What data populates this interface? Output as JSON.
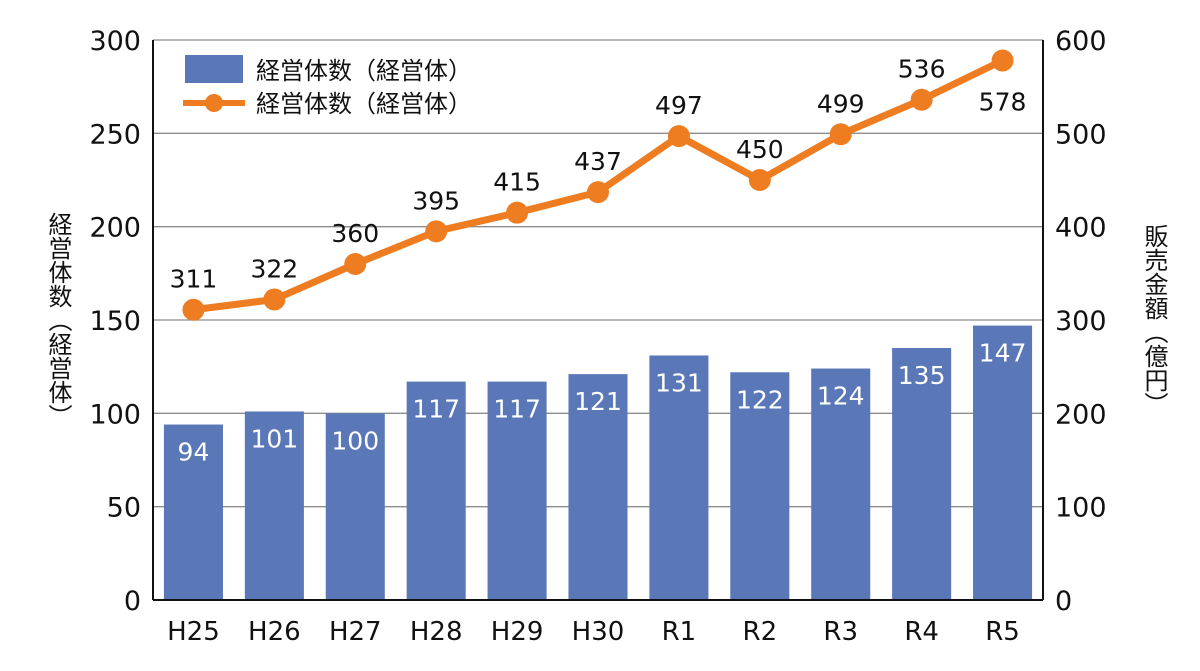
{
  "chart_data": {
    "type": "bar+line",
    "categories": [
      "H25",
      "H26",
      "H27",
      "H28",
      "H29",
      "H30",
      "R1",
      "R2",
      "R3",
      "R4",
      "R5"
    ],
    "series": [
      {
        "name": "経営体数（経営体）",
        "type": "bar",
        "axis": "left",
        "color": "#5a78b8",
        "values": [
          94,
          101,
          100,
          117,
          117,
          121,
          131,
          122,
          124,
          135,
          147
        ]
      },
      {
        "name": "経営体数（経営体）",
        "type": "line",
        "axis": "right",
        "color": "#ee7d22",
        "values": [
          311,
          322,
          360,
          395,
          415,
          437,
          497,
          450,
          499,
          536,
          578
        ]
      }
    ],
    "left_axis": {
      "label": "経営体数（経営体）",
      "range": [
        0,
        300
      ],
      "ticks": [
        "0",
        "50",
        "100",
        "150",
        "200",
        "250",
        "300"
      ]
    },
    "right_axis": {
      "label": "販売金額（億円）",
      "range": [
        0,
        600
      ],
      "ticks": [
        "0",
        "100",
        "200",
        "300",
        "400",
        "500",
        "600"
      ]
    },
    "grid": true,
    "legend": "top-left"
  }
}
